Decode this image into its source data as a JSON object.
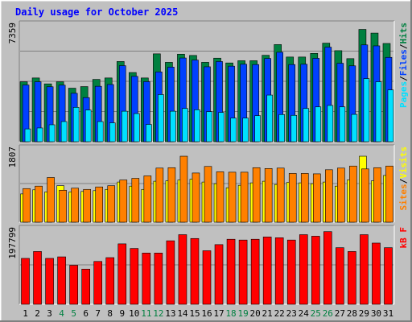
{
  "title": "Daily usage for October 2025",
  "colors": {
    "background": "#c0c0c0",
    "frame_light": "#ffffff",
    "frame_dark": "#808080",
    "title": "#0000ff",
    "weekday_label": "#000000",
    "weekend_label": "#008040",
    "hits": "#008040",
    "files": "#0040ff",
    "pages": "#00e0ff",
    "visits": "#ffff00",
    "sites": "#ff8000",
    "kbytes": "#ff0000",
    "gridline": "#808080"
  },
  "chart_data": [
    {
      "type": "bar",
      "panel": "requests",
      "ymax_label": "7359",
      "ylim": [
        0,
        7359
      ],
      "grid": true,
      "x": [
        "1",
        "2",
        "3",
        "4",
        "5",
        "6",
        "7",
        "8",
        "9",
        "10",
        "11",
        "12",
        "13",
        "14",
        "15",
        "16",
        "17",
        "18",
        "19",
        "20",
        "21",
        "22",
        "23",
        "24",
        "25",
        "26",
        "27",
        "28",
        "29",
        "30",
        "31"
      ],
      "weekend_days": [
        4,
        5,
        11,
        12,
        18,
        19,
        25,
        26
      ],
      "legend": [
        {
          "key": "pages",
          "label": "Pages",
          "color": "#00e0ff"
        },
        {
          "key": "sep1",
          "label": "/",
          "color": "#000000"
        },
        {
          "key": "files",
          "label": "Files",
          "color": "#0040ff"
        },
        {
          "key": "sep2",
          "label": "/",
          "color": "#000000"
        },
        {
          "key": "hits",
          "label": "Hits",
          "color": "#008040"
        }
      ],
      "series": [
        {
          "name": "Hits",
          "color": "#008040",
          "values": [
            3750,
            3990,
            3620,
            3750,
            3350,
            3450,
            3900,
            3990,
            5020,
            4330,
            3990,
            5500,
            4970,
            5480,
            5400,
            4970,
            5230,
            4930,
            5070,
            5070,
            5410,
            6080,
            5300,
            5300,
            5530,
            6170,
            5700,
            5200,
            7030,
            6800,
            6150
          ]
        },
        {
          "name": "Files",
          "color": "#0040ff",
          "values": [
            3550,
            3750,
            3440,
            3540,
            3030,
            2760,
            3470,
            3580,
            4760,
            4090,
            3760,
            4370,
            4670,
            5240,
            5110,
            4690,
            5020,
            4730,
            4850,
            4830,
            5210,
            5600,
            4830,
            4850,
            5220,
            5920,
            4910,
            4750,
            6060,
            6000,
            5280
          ]
        },
        {
          "name": "Pages",
          "color": "#00e0ff",
          "values": [
            800,
            860,
            1060,
            1260,
            2150,
            1980,
            1260,
            1180,
            1910,
            1760,
            1080,
            2950,
            1910,
            2080,
            2000,
            1880,
            1830,
            1480,
            1480,
            1630,
            2920,
            1700,
            1650,
            2080,
            2180,
            2270,
            2180,
            1710,
            3950,
            3750,
            3240
          ]
        }
      ]
    },
    {
      "type": "bar",
      "panel": "visitors",
      "ymax_label": "1807",
      "ylim": [
        0,
        1807
      ],
      "grid": true,
      "legend": [
        {
          "key": "sites",
          "label": "Sites",
          "color": "#ff8000"
        },
        {
          "key": "sep1",
          "label": "/",
          "color": "#000000"
        },
        {
          "key": "visits",
          "label": "Visits",
          "color": "#ffff00"
        }
      ],
      "series": [
        {
          "name": "Visits",
          "color": "#ffff00",
          "values": [
            690,
            790,
            740,
            890,
            740,
            750,
            770,
            800,
            980,
            880,
            800,
            1000,
            1010,
            1030,
            1050,
            980,
            940,
            840,
            900,
            960,
            1000,
            920,
            970,
            960,
            940,
            980,
            880,
            1030,
            1610,
            1010,
            1140
          ]
        },
        {
          "name": "Sites",
          "color": "#ff8000",
          "values": [
            820,
            880,
            1090,
            780,
            830,
            800,
            860,
            890,
            1030,
            1070,
            1130,
            1320,
            1330,
            1610,
            1200,
            1360,
            1230,
            1220,
            1220,
            1330,
            1310,
            1320,
            1190,
            1190,
            1180,
            1280,
            1320,
            1370,
            1300,
            1330,
            1370
          ]
        }
      ]
    },
    {
      "type": "bar",
      "panel": "kbytes",
      "ymax_label": "197799",
      "ylim": [
        0,
        197799
      ],
      "grid": true,
      "legend": [
        {
          "key": "kbf",
          "label": "kB F",
          "color": "#ff0000"
        }
      ],
      "series": [
        {
          "name": "kB F",
          "color": "#ff0000",
          "values": [
            120000,
            138000,
            120000,
            124000,
            102000,
            92000,
            112000,
            122000,
            158000,
            146000,
            134000,
            134000,
            166000,
            182000,
            172000,
            140000,
            156000,
            170000,
            168000,
            170000,
            176000,
            174000,
            168000,
            182000,
            178000,
            190000,
            148000,
            138000,
            182000,
            160000,
            148000
          ]
        }
      ]
    }
  ]
}
